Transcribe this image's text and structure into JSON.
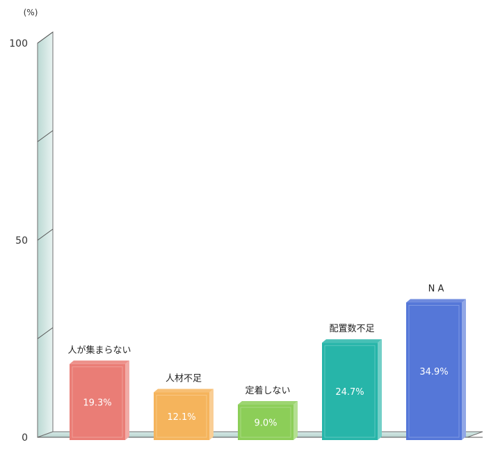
{
  "chart_data": {
    "type": "bar",
    "title": "",
    "unit_label": "(%)",
    "ylim": [
      0,
      100
    ],
    "yticks": [
      0,
      50,
      100
    ],
    "categories": [
      "人が集まらない",
      "人材不足",
      "定着しない",
      "配置数不足",
      "N A"
    ],
    "values": [
      19.3,
      12.1,
      9.0,
      24.7,
      34.9
    ],
    "value_labels": [
      "19.3%",
      "12.1%",
      "9.0%",
      "24.7%",
      "34.9%"
    ],
    "colors": [
      "#ea7d76",
      "#f5b45c",
      "#8cce58",
      "#27b5a9",
      "#5577d8"
    ],
    "grid": false,
    "legend": "none"
  }
}
